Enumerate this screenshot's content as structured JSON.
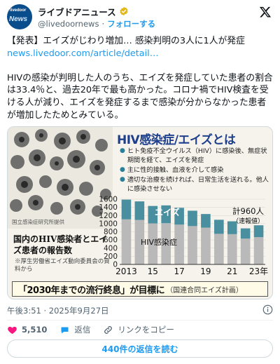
{
  "account": {
    "avatar_line1": "livedoor",
    "avatar_line2": "News",
    "name": "ライブドアニュース",
    "handle": "@livedoornews",
    "separator": "·",
    "follow_label": "フォローする"
  },
  "tweet": {
    "headline": "【発表】エイズがじわり増加… 感染判明の3人に1人が発症",
    "link": "news.livedoor.com/article/detail…",
    "body": "HIVの感染が判明した人のうち、エイズを発症していた患者の割合は33.4％と、過去20年で最も高かった。コロナ禍でHIV検査を受ける人が減り、エイズを発症するまで感染が分からなかった患者が増加したためとみている。"
  },
  "image": {
    "photo_caption": "国立感染症研究所提供",
    "info_title": "HIV感染症/エイズとは",
    "bullets": [
      "ヒト免疫不全ウイルス（HIV）に感染後、無症状期間を経て、エイズを発症",
      "主に性的接触、血液を介して感染",
      "適切な治療を続ければ、日常生活を送れる。他人に感染させない"
    ],
    "left_title": "国内のHIV感染者とエイズ患者の報告数",
    "left_note": "※厚生労働省エイズ動向委員会の資料から",
    "banner_main": "「2030年までの流行終息」が目標に",
    "banner_sub": "（国連合同エイズ計画）",
    "total_label": "計960人",
    "total_note": "（速報値）"
  },
  "chart_data": {
    "type": "bar",
    "stacked": true,
    "y_ticks": [
      "1600",
      "1400",
      "1200",
      "1000",
      "800",
      "600",
      "400",
      "200",
      "0"
    ],
    "ylim": [
      0,
      1600
    ],
    "x_tick_labels": [
      "2013",
      "15",
      "17",
      "19",
      "21",
      "23年"
    ],
    "categories": [
      "2013",
      "2014",
      "2015",
      "2016",
      "2017",
      "2018",
      "2019",
      "2020",
      "2021",
      "2022",
      "2023"
    ],
    "series": [
      {
        "name": "HIV感染症",
        "color": "#b9b9b9",
        "values": [
          1106,
          1091,
          1006,
          1011,
          976,
          940,
          903,
          750,
          742,
          632,
          668
        ]
      },
      {
        "name": "エイズ",
        "color": "#4a8fa0",
        "values": [
          484,
          455,
          428,
          437,
          413,
          377,
          333,
          345,
          315,
          252,
          292
        ]
      }
    ]
  },
  "meta": {
    "timestamp": "午後3:51 · 2025年9月27日"
  },
  "actions": {
    "likes": "5,510",
    "reply_label": "返信",
    "copy_link_label": "リンクをコピー",
    "read_replies": "440件の返信を読む"
  },
  "colors": {
    "accent": "#1d9bf0",
    "like": "#f91880",
    "title_blue": "#1d3f8c"
  }
}
